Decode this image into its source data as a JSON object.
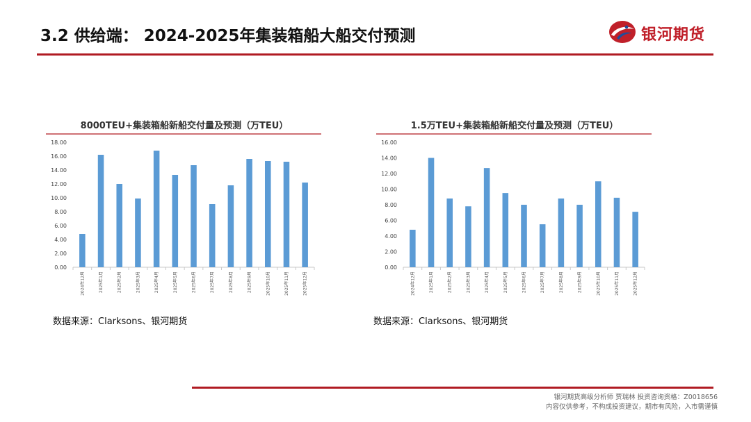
{
  "header": {
    "title": "3.2 供给端： 2024-2025年集装箱船大船交付预测",
    "logo_text": "银河期货"
  },
  "colors": {
    "accent": "#b01b22",
    "bar": "#5b9bd5",
    "logo_blue": "#1f4e9c"
  },
  "chart_data": [
    {
      "type": "bar",
      "title": "8000TEU+集装箱船新船交付量及预测（万TEU）",
      "categories": [
        "2024年12月",
        "2025年1月",
        "2025年2月",
        "2025年3月",
        "2025年4月",
        "2025年5月",
        "2025年6月",
        "2025年7月",
        "2025年8月",
        "2025年9月",
        "2025年10月",
        "2025年11月",
        "2025年12月"
      ],
      "values": [
        4.8,
        16.2,
        12.0,
        9.9,
        16.8,
        13.3,
        14.7,
        9.1,
        11.8,
        15.6,
        15.3,
        15.2,
        12.2
      ],
      "y_ticks": [
        "0.00",
        "2.00",
        "4.00",
        "6.00",
        "8.00",
        "10.00",
        "12.00",
        "14.00",
        "16.00",
        "18.00"
      ],
      "ylim": [
        0,
        18
      ],
      "grid": false,
      "legend": "none"
    },
    {
      "type": "bar",
      "title": "1.5万TEU+集装箱船新船交付量及预测（万TEU）",
      "categories": [
        "2024年12月",
        "2025年1月",
        "2025年2月",
        "2025年3月",
        "2025年4月",
        "2025年5月",
        "2025年6月",
        "2025年7月",
        "2025年8月",
        "2025年9月",
        "2025年10月",
        "2025年11月",
        "2025年12月"
      ],
      "values": [
        4.8,
        14.0,
        8.8,
        7.8,
        12.7,
        9.5,
        8.0,
        5.5,
        8.8,
        8.0,
        11.0,
        8.9,
        7.1
      ],
      "y_ticks": [
        "0.00",
        "2.00",
        "4.00",
        "6.00",
        "8.00",
        "10.00",
        "12.00",
        "14.00",
        "16.00"
      ],
      "ylim": [
        0,
        16
      ],
      "grid": false,
      "legend": "none"
    }
  ],
  "sources": [
    "数据来源：Clarksons、银河期货",
    "数据来源：Clarksons、银河期货"
  ],
  "footer": {
    "line1": "银河期货高级分析师 贾瑞林 投资咨询资格：Z0018656",
    "line2": "内容仅供参考，不构成投资建议，期市有风险，入市需谨慎"
  }
}
